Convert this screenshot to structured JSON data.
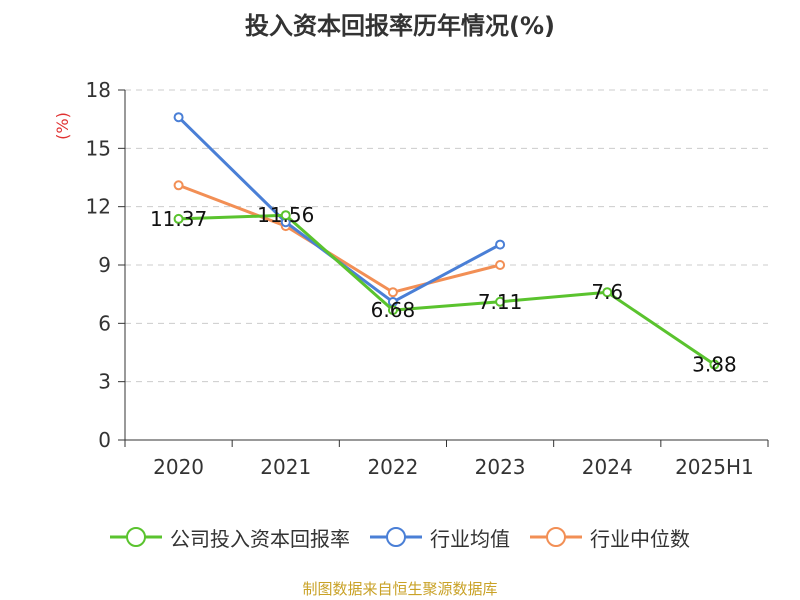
{
  "chart_data": {
    "type": "line",
    "title": "投入资本回报率历年情况(%)",
    "ylabel": "(%)",
    "xlabel": "",
    "categories": [
      "2020",
      "2021",
      "2022",
      "2023",
      "2024",
      "2025H1"
    ],
    "ylim": [
      0,
      18
    ],
    "yticks": [
      0,
      3,
      6,
      9,
      12,
      15,
      18
    ],
    "grid": true,
    "legend_position": "bottom",
    "series": [
      {
        "name": "公司投入资本回报率",
        "color": "#5ac32e",
        "values": [
          11.37,
          11.56,
          6.68,
          7.11,
          7.6,
          3.88
        ],
        "labels": [
          "11.37",
          "11.56",
          "6.68",
          "7.11",
          "7.6",
          "3.88"
        ]
      },
      {
        "name": "行业均值",
        "color": "#4a7fd6",
        "values": [
          16.6,
          11.2,
          7.1,
          10.05,
          null,
          null
        ]
      },
      {
        "name": "行业中位数",
        "color": "#f28f55",
        "values": [
          13.1,
          11.0,
          7.6,
          9.0,
          null,
          null
        ]
      }
    ]
  },
  "source_note": "制图数据来自恒生聚源数据库"
}
